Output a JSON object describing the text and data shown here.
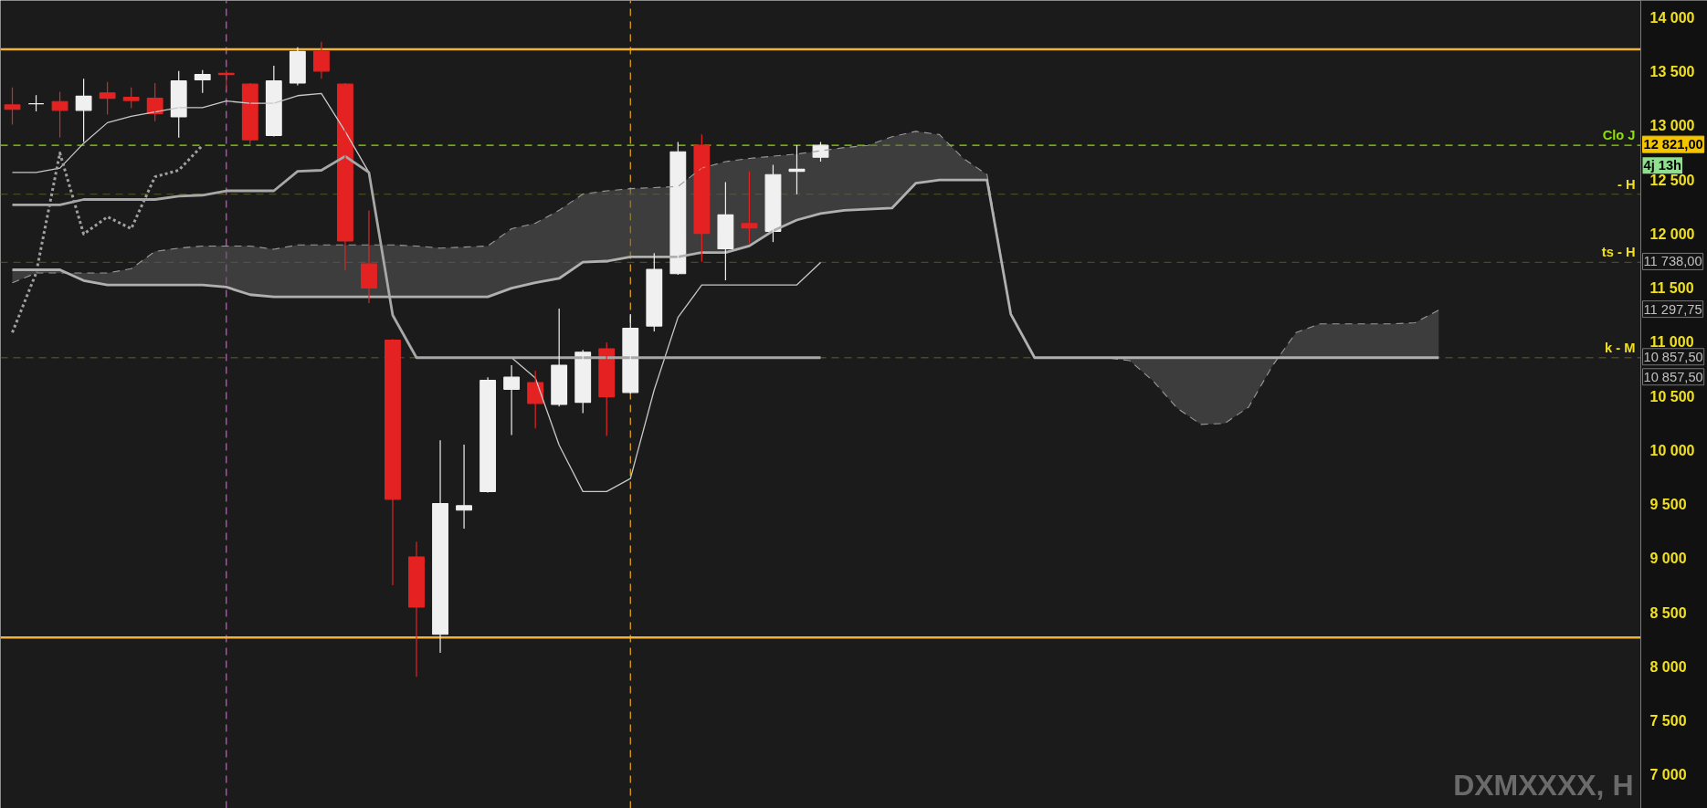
{
  "chart_data": {
    "type": "candlestick",
    "categories": [
      null,
      null,
      null,
      null,
      null,
      null,
      null,
      null,
      null,
      null,
      null,
      null,
      null,
      null,
      null,
      null,
      null,
      null,
      null,
      null,
      null,
      null,
      null,
      null,
      null,
      null,
      null,
      null,
      null,
      null,
      null,
      null,
      null,
      null,
      null,
      null,
      null,
      null,
      null,
      null,
      null,
      null,
      null,
      null,
      null,
      null,
      null,
      null,
      null,
      null,
      null,
      null,
      null,
      null,
      null,
      null,
      null,
      null,
      null,
      null,
      null,
      null,
      null,
      null,
      null,
      null,
      null,
      null,
      null
    ],
    "ohlc": [
      [
        13194,
        13355,
        13013,
        13154
      ],
      [
        13205,
        13285,
        13134,
        13205
      ],
      [
        13225,
        13315,
        12892,
        13144
      ],
      [
        13144,
        13436,
        12852,
        13275
      ],
      [
        13305,
        13406,
        13104,
        13255
      ],
      [
        13265,
        13355,
        13164,
        13235
      ],
      [
        13255,
        13396,
        13043,
        13114
      ],
      [
        13084,
        13507,
        12892,
        13416
      ],
      [
        13426,
        13517,
        13305,
        13476
      ],
      [
        13486,
        13517,
        13335,
        13476
      ],
      [
        13386,
        13396,
        12832,
        12872
      ],
      [
        12912,
        13557,
        12902,
        13416
      ],
      [
        13396,
        13728,
        13376,
        13688
      ],
      [
        13688,
        13778,
        13436,
        13507
      ],
      [
        13386,
        13396,
        11664,
        11936
      ],
      [
        11724,
        12218,
        11362,
        11503
      ],
      [
        11019,
        11029,
        8754,
        9549
      ],
      [
        9015,
        9156,
        7908,
        8552
      ],
      [
        8300,
        10093,
        8129,
        9509
      ],
      [
        9448,
        10053,
        9277,
        9489
      ],
      [
        9620,
        10677,
        9610,
        10647
      ],
      [
        10566,
        10788,
        10143,
        10677
      ],
      [
        10627,
        10737,
        10204,
        10435
      ],
      [
        10425,
        11311,
        10405,
        10788
      ],
      [
        10445,
        10929,
        10345,
        10908
      ],
      [
        10939,
        11000,
        10133,
        10496
      ],
      [
        10536,
        11261,
        10526,
        11130
      ],
      [
        11150,
        11825,
        11100,
        11674
      ],
      [
        11634,
        12852,
        11624,
        12761
      ],
      [
        12822,
        12922,
        11744,
        12006
      ],
      [
        11865,
        12480,
        11573,
        12177
      ],
      [
        12097,
        12580,
        11916,
        12057
      ],
      [
        12026,
        12641,
        11926,
        12550
      ],
      [
        12580,
        12822,
        12369,
        12600
      ],
      [
        12711,
        12852,
        12671,
        12821
      ],
      null,
      null,
      null,
      null,
      null,
      null,
      null,
      null,
      null,
      null,
      null,
      null,
      null,
      null,
      null,
      null,
      null,
      null,
      null,
      null,
      null,
      null,
      null,
      null,
      null,
      null,
      null,
      null,
      null,
      null,
      null,
      null,
      null,
      null
    ],
    "colors": [
      "#e52222",
      "#f0f0f0",
      "#e52222",
      "#f0f0f0",
      "#e52222",
      "#e52222",
      "#e52222",
      "#f0f0f0",
      "#f0f0f0",
      "#e52222",
      "#e52222",
      "#f0f0f0",
      "#f0f0f0",
      "#e52222",
      "#e52222",
      "#e52222",
      "#e52222",
      "#e52222",
      "#f0f0f0",
      "#f0f0f0",
      "#f0f0f0",
      "#f0f0f0",
      "#e52222",
      "#f0f0f0",
      "#f0f0f0",
      "#e52222",
      "#f0f0f0",
      "#f0f0f0",
      "#f0f0f0",
      "#e52222",
      "#f0f0f0",
      "#e52222",
      "#f0f0f0",
      "#f0f0f0",
      "#f0f0f0",
      null,
      null,
      null,
      null,
      null,
      null,
      null,
      null,
      null,
      null,
      null,
      null,
      null,
      null,
      null,
      null,
      null,
      null,
      null,
      null,
      null,
      null,
      null,
      null,
      null,
      null,
      null,
      null,
      null,
      null,
      null,
      null,
      null,
      null
    ],
    "series": [
      {
        "type": "line",
        "color": "#c8c8c8",
        "line_style": "solid",
        "values": [
          12570,
          12570,
          12610,
          12840,
          13030,
          13090,
          13130,
          13170,
          13170,
          13230,
          13210,
          13210,
          13280,
          13300,
          12950,
          12570,
          11250,
          10857.5,
          10857.5,
          10857.5,
          10857.5,
          10857.5,
          10670,
          10050,
          9620,
          9620,
          9740,
          10560,
          11230,
          11530,
          11530,
          11530,
          11530,
          11530,
          11738,
          null,
          null,
          null,
          null,
          null,
          null,
          null,
          null,
          null,
          null,
          null,
          null,
          null,
          null,
          null,
          null,
          null,
          null,
          null,
          null,
          null,
          null,
          null,
          null,
          null,
          null,
          null,
          null,
          null,
          null,
          null,
          null,
          null,
          null
        ]
      },
      {
        "type": "line",
        "color": "#a8a8a8",
        "line_style": "solid",
        "values": [
          12270,
          12270,
          12270,
          12320,
          12320,
          12320,
          12320,
          12350,
          12360,
          12400,
          12400,
          12400,
          12580,
          12590,
          12720,
          12570,
          11250,
          10857.5,
          10857.5,
          10857.5,
          10857.5,
          10857.5,
          10857.5,
          10857.5,
          10857.5,
          10857.5,
          10857.5,
          10857.5,
          10857.5,
          10857.5,
          10857.5,
          10857.5,
          10857.5,
          10857.5,
          10857.5,
          null,
          null,
          null,
          null,
          null,
          null,
          null,
          null,
          null,
          null,
          null,
          null,
          null,
          null,
          null,
          null,
          null,
          null,
          null,
          null,
          null,
          null,
          null,
          null,
          null,
          null,
          null,
          null,
          null,
          null,
          null,
          null,
          null,
          null
        ]
      },
      {
        "type": "line",
        "color": "#a0a0a0",
        "line_style": "dotted",
        "values": [
          11090,
          11640,
          12750,
          12000,
          12160,
          12050,
          12530,
          12590,
          12821,
          null,
          null,
          null,
          null,
          null,
          null,
          null,
          null,
          null,
          null,
          null,
          null,
          null,
          null,
          null,
          null,
          null,
          null,
          null,
          null,
          null,
          null,
          null,
          null,
          null,
          null,
          null,
          null,
          null,
          null,
          null,
          null,
          null,
          null,
          null,
          null,
          null,
          null,
          null,
          null,
          null,
          null,
          null,
          null,
          null,
          null,
          null,
          null,
          null,
          null,
          null,
          null,
          null,
          null,
          null,
          null,
          null,
          null,
          null,
          null
        ]
      },
      {
        "type": "line",
        "color": "#9a9a9a",
        "line_style": "dashed",
        "values": [
          11550,
          11640,
          11640,
          11640,
          11640,
          11680,
          11840,
          11870,
          11890,
          11890,
          11890,
          11860,
          11900,
          11900,
          11900,
          11900,
          11900,
          11890,
          11870,
          11880,
          11890,
          12050,
          12100,
          12220,
          12370,
          12400,
          12420,
          12430,
          12440,
          12610,
          12670,
          12700,
          12720,
          12740,
          12770,
          12800,
          12820,
          12900,
          12950,
          12920,
          12700,
          12550,
          11260,
          10857.5,
          10857.5,
          10857.5,
          10857.5,
          10830,
          10640,
          10390,
          10240,
          10250,
          10400,
          10780,
          11090,
          11170,
          11170,
          11170,
          11170,
          11180,
          11297.75,
          null,
          null,
          null,
          null,
          null,
          null,
          null,
          null
        ],
        "lower": [
          11670,
          11670,
          11670,
          11570,
          11530,
          11530,
          11530,
          11530,
          11530,
          11510,
          11440,
          11420,
          11420,
          11420,
          11420,
          11420,
          11420,
          11420,
          11420,
          11420,
          11420,
          11500,
          11550,
          11590,
          11740,
          11750,
          11790,
          11790,
          11790,
          11830,
          11830,
          11890,
          12030,
          12130,
          12190,
          12220,
          12230,
          12240,
          12470,
          12500,
          12500,
          12500,
          11260,
          10857.5,
          10857.5,
          10857.5,
          10857.5,
          10857.5,
          10857.5,
          10857.5,
          10857.5,
          10857.5,
          10857.5,
          10857.5,
          10857.5,
          10857.5,
          10857.5,
          10857.5,
          10857.5,
          10857.5,
          10857.5,
          null,
          null,
          null,
          null,
          null,
          null,
          null,
          null
        ],
        "upper": [
          11550,
          11640,
          11640,
          11640,
          11640,
          11680,
          11840,
          11870,
          11890,
          11890,
          11890,
          11860,
          11900,
          11900,
          11900,
          11900,
          11900,
          11890,
          11870,
          11880,
          11890,
          12050,
          12100,
          12220,
          12370,
          12400,
          12420,
          12430,
          12440,
          12610,
          12670,
          12700,
          12720,
          12740,
          12770,
          12800,
          12820,
          12900,
          12950,
          12920,
          12700,
          12550,
          11260,
          10857.5,
          10857.5,
          10857.5,
          10857.5,
          10830,
          10640,
          10390,
          10240,
          10250,
          10400,
          10780,
          11090,
          11170,
          11170,
          11170,
          11170,
          11180,
          11297.75,
          null,
          null,
          null,
          null,
          null,
          null,
          null,
          null
        ]
      },
      {
        "type": "line",
        "color": "#b0b0b0",
        "line_style": "solid",
        "values": [
          11670,
          11670,
          11670,
          11570,
          11530,
          11530,
          11530,
          11530,
          11530,
          11510,
          11440,
          11420,
          11420,
          11420,
          11420,
          11420,
          11420,
          11420,
          11420,
          11420,
          11420,
          11500,
          11550,
          11590,
          11740,
          11750,
          11790,
          11790,
          11790,
          11830,
          11830,
          11890,
          12030,
          12130,
          12190,
          12220,
          12230,
          12240,
          12470,
          12500,
          12500,
          12500,
          11260,
          10857.5,
          10857.5,
          10857.5,
          10857.5,
          10857.5,
          10857.5,
          10857.5,
          10857.5,
          10857.5,
          10857.5,
          10857.5,
          10857.5,
          10857.5,
          10857.5,
          10857.5,
          10857.5,
          10857.5,
          10857.5,
          null,
          null,
          null,
          null,
          null,
          null,
          null,
          null
        ]
      }
    ],
    "ylim": [
      6690,
      14160
    ],
    "yticks": [
      {
        "value": 7000,
        "label": "7 000"
      },
      {
        "value": 7500,
        "label": "7 500"
      },
      {
        "value": 8000,
        "label": "8 000"
      },
      {
        "value": 8500,
        "label": "8 500"
      },
      {
        "value": 9000,
        "label": "9 000"
      },
      {
        "value": 9500,
        "label": "9 500"
      },
      {
        "value": 10000,
        "label": "10 000"
      },
      {
        "value": 10500,
        "label": "10 500"
      },
      {
        "value": 11000,
        "label": "11 000"
      },
      {
        "value": 11500,
        "label": "11 500"
      },
      {
        "value": 12000,
        "label": "12 000"
      },
      {
        "value": 12500,
        "label": "12 500"
      },
      {
        "value": 13000,
        "label": "13 000"
      },
      {
        "value": 13500,
        "label": "13 500"
      },
      {
        "value": 14000,
        "label": "14 000"
      }
    ],
    "tick_labels": "y",
    "grid": false,
    "marker": "none",
    "ref_lines": [
      {
        "axis": "y",
        "value": 13708,
        "color": "#f5b335",
        "line_style": "solid"
      },
      {
        "axis": "y",
        "value": 8270,
        "color": "#f5b335",
        "line_style": "solid"
      },
      {
        "axis": "y",
        "value": 12821,
        "label": "Clo J",
        "color": "#8fe000",
        "line_style": "dashed"
      },
      {
        "axis": "y",
        "value": 12369,
        "label": "- H",
        "color": "#4a4a22",
        "line_style": "dashed"
      },
      {
        "axis": "y",
        "value": 11738,
        "label": "ts - H",
        "color": "#4a4a22",
        "line_style": "dashed"
      },
      {
        "axis": "y",
        "value": 10857.5,
        "label": "k - M",
        "color": "#4a4a22",
        "line_style": "dashed"
      }
    ],
    "annotations": [
      "12 821,00",
      "11 738,00",
      "11 297,75",
      "10 857,50",
      "10 857,50",
      "4j 13h",
      "DXMXXXX, H"
    ]
  }
}
